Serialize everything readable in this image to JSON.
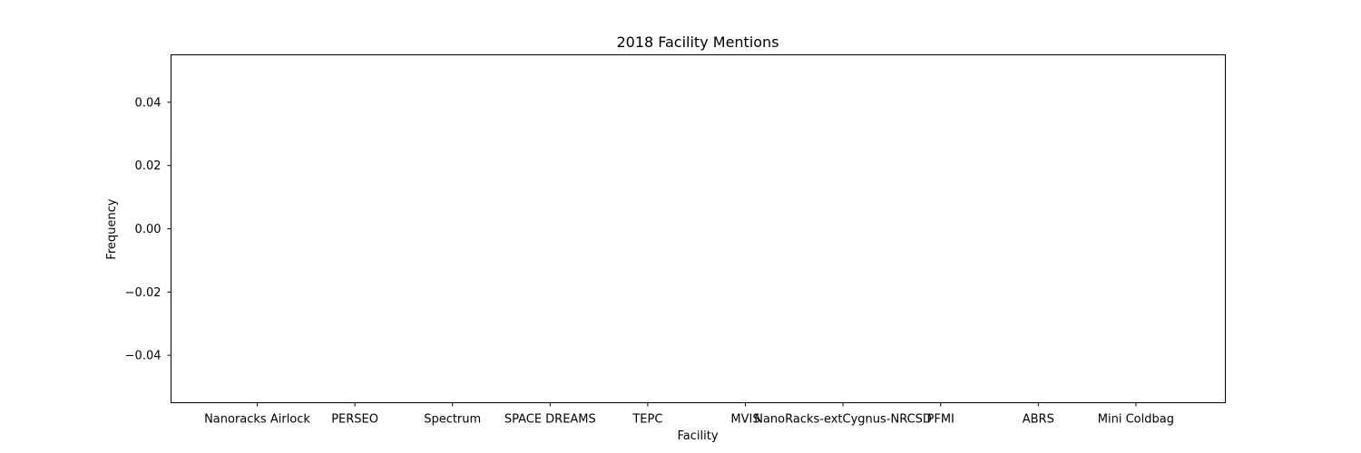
{
  "chart_data": {
    "type": "bar",
    "title": "2018 Facility Mentions",
    "xlabel": "Facility",
    "ylabel": "Frequency",
    "categories": [
      "Nanoracks Airlock",
      "PERSEO",
      "Spectrum",
      "SPACE DREAMS",
      "TEPC",
      "MVIS",
      "NanoRacks-extCygnus-NRCSD",
      "PFMI",
      "ABRS",
      "Mini Coldbag"
    ],
    "values": [
      0,
      0,
      0,
      0,
      0,
      0,
      0,
      0,
      0,
      0
    ],
    "ylim": [
      -0.055,
      0.055
    ],
    "yticks": [
      0.04,
      0.02,
      0.0,
      -0.02,
      -0.04
    ],
    "ytick_labels": [
      "0.04",
      "0.02",
      "0.00",
      "−0.02",
      "−0.04"
    ],
    "grid": false,
    "legend": "none"
  }
}
